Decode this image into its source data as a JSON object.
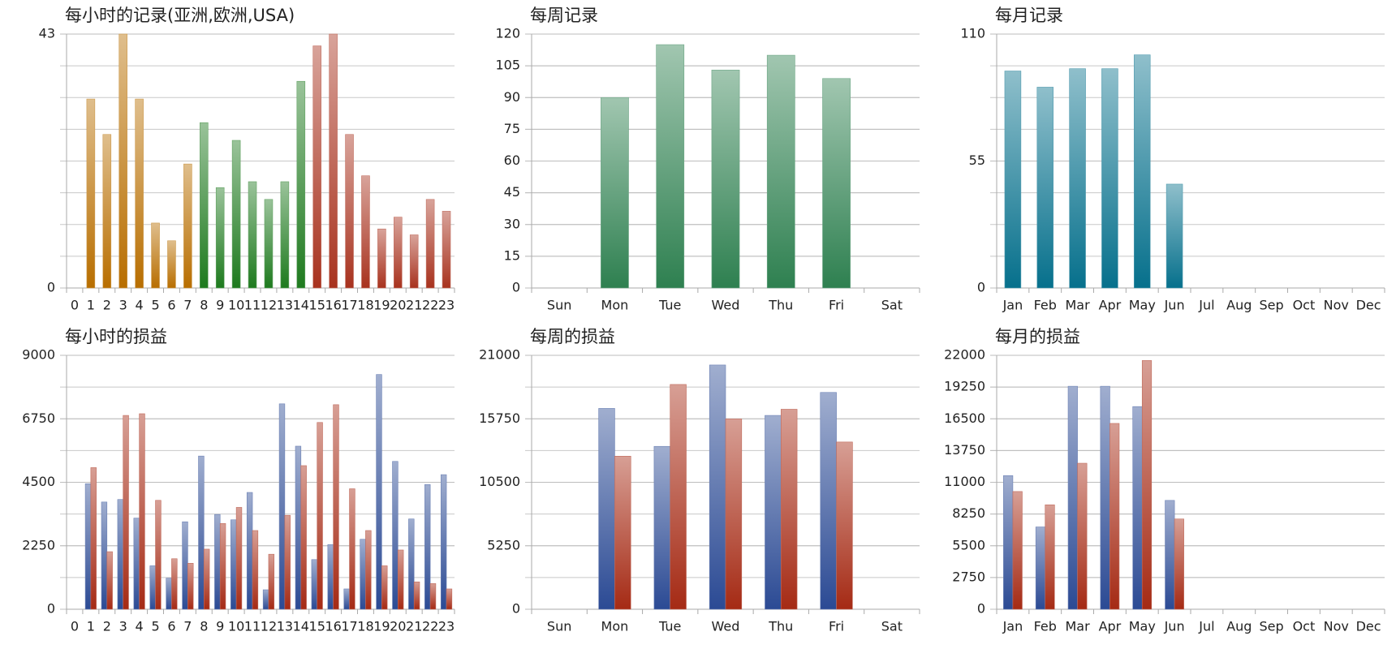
{
  "chart_data": [
    {
      "type": "bar",
      "title": "每小时的记录(亚洲,欧洲,USA)",
      "categories": [
        "0",
        "1",
        "2",
        "3",
        "4",
        "5",
        "6",
        "7",
        "8",
        "9",
        "10",
        "11",
        "12",
        "13",
        "14",
        "15",
        "16",
        "17",
        "18",
        "19",
        "20",
        "21",
        "22",
        "23"
      ],
      "values": [
        0,
        32,
        26,
        43,
        32,
        11,
        8,
        21,
        28,
        17,
        25,
        18,
        15,
        18,
        35,
        41,
        43,
        26,
        19,
        10,
        12,
        9,
        15,
        13
      ],
      "colors": [
        "#b86e00",
        "#b86e00",
        "#b86e00",
        "#b86e00",
        "#b86e00",
        "#b86e00",
        "#b86e00",
        "#b86e00",
        "#1e7a1e",
        "#1e7a1e",
        "#1e7a1e",
        "#1e7a1e",
        "#1e7a1e",
        "#1e7a1e",
        "#1e7a1e",
        "#a8321e",
        "#a8321e",
        "#a8321e",
        "#a8321e",
        "#a8321e",
        "#a8321e",
        "#a8321e",
        "#a8321e",
        "#a8321e"
      ],
      "ylim": [
        0,
        43
      ],
      "yticks": [
        0,
        43
      ],
      "grid": true
    },
    {
      "type": "bar",
      "title": "每周记录",
      "categories": [
        "Sun",
        "Mon",
        "Tue",
        "Wed",
        "Thu",
        "Fri",
        "Sat"
      ],
      "values": [
        0,
        90,
        115,
        103,
        110,
        99,
        0
      ],
      "color": "#2e8050",
      "ylim": [
        0,
        120
      ],
      "yticks": [
        0,
        15,
        30,
        45,
        60,
        75,
        90,
        105,
        120
      ],
      "grid": true
    },
    {
      "type": "bar",
      "title": "每月记录",
      "categories": [
        "Jan",
        "Feb",
        "Mar",
        "Apr",
        "May",
        "Jun",
        "Jul",
        "Aug",
        "Sep",
        "Oct",
        "Nov",
        "Dec"
      ],
      "values": [
        94,
        87,
        95,
        95,
        101,
        45,
        0,
        0,
        0,
        0,
        0,
        0
      ],
      "color": "#06708c",
      "ylim": [
        0,
        110
      ],
      "yticks": [
        0,
        55,
        110
      ],
      "grid": true
    },
    {
      "type": "bar",
      "title": "每小时的损益",
      "categories": [
        "0",
        "1",
        "2",
        "3",
        "4",
        "5",
        "6",
        "7",
        "8",
        "9",
        "10",
        "11",
        "12",
        "13",
        "14",
        "15",
        "16",
        "17",
        "18",
        "19",
        "20",
        "21",
        "22",
        "23"
      ],
      "series": [
        {
          "color": "#2b4a94",
          "values": [
            0,
            4450,
            3800,
            3890,
            3230,
            1540,
            1100,
            3100,
            5430,
            3360,
            3170,
            4140,
            690,
            7280,
            5780,
            1760,
            2290,
            720,
            2480,
            8320,
            5240,
            3200,
            4420,
            4770
          ]
        },
        {
          "color": "#a52a14",
          "values": [
            0,
            5020,
            2040,
            6870,
            6930,
            3860,
            1790,
            1630,
            2130,
            3040,
            3610,
            2790,
            1950,
            3330,
            5090,
            6620,
            7250,
            4270,
            2790,
            1540,
            2100,
            970,
            910,
            720
          ]
        }
      ],
      "ylim": [
        0,
        9000
      ],
      "yticks": [
        0,
        2250,
        4500,
        6750,
        9000
      ],
      "grid": true
    },
    {
      "type": "bar",
      "title": "每周的损益",
      "categories": [
        "Sun",
        "Mon",
        "Tue",
        "Wed",
        "Thu",
        "Fri",
        "Sat"
      ],
      "series": [
        {
          "color": "#2b4a94",
          "values": [
            0,
            16610,
            13470,
            20200,
            16030,
            17930,
            0
          ]
        },
        {
          "color": "#a52a14",
          "values": [
            0,
            12660,
            18590,
            15740,
            16540,
            13830,
            0
          ]
        }
      ],
      "ylim": [
        0,
        21000
      ],
      "yticks": [
        0,
        5250,
        10500,
        15750,
        21000
      ],
      "grid": true
    },
    {
      "type": "bar",
      "title": "每月的损益",
      "categories": [
        "Jan",
        "Feb",
        "Mar",
        "Apr",
        "May",
        "Jun",
        "Jul",
        "Aug",
        "Sep",
        "Oct",
        "Nov",
        "Dec"
      ],
      "series": [
        {
          "color": "#2b4a94",
          "values": [
            11580,
            7130,
            19320,
            19320,
            17560,
            9430,
            0,
            0,
            0,
            0,
            0,
            0
          ]
        },
        {
          "color": "#a52a14",
          "values": [
            10200,
            9050,
            12650,
            16100,
            21550,
            7820,
            0,
            0,
            0,
            0,
            0,
            0
          ]
        }
      ],
      "ylim": [
        0,
        22000
      ],
      "yticks": [
        0,
        2750,
        5500,
        8250,
        11000,
        13750,
        16500,
        19250,
        22000
      ],
      "grid": true
    }
  ]
}
